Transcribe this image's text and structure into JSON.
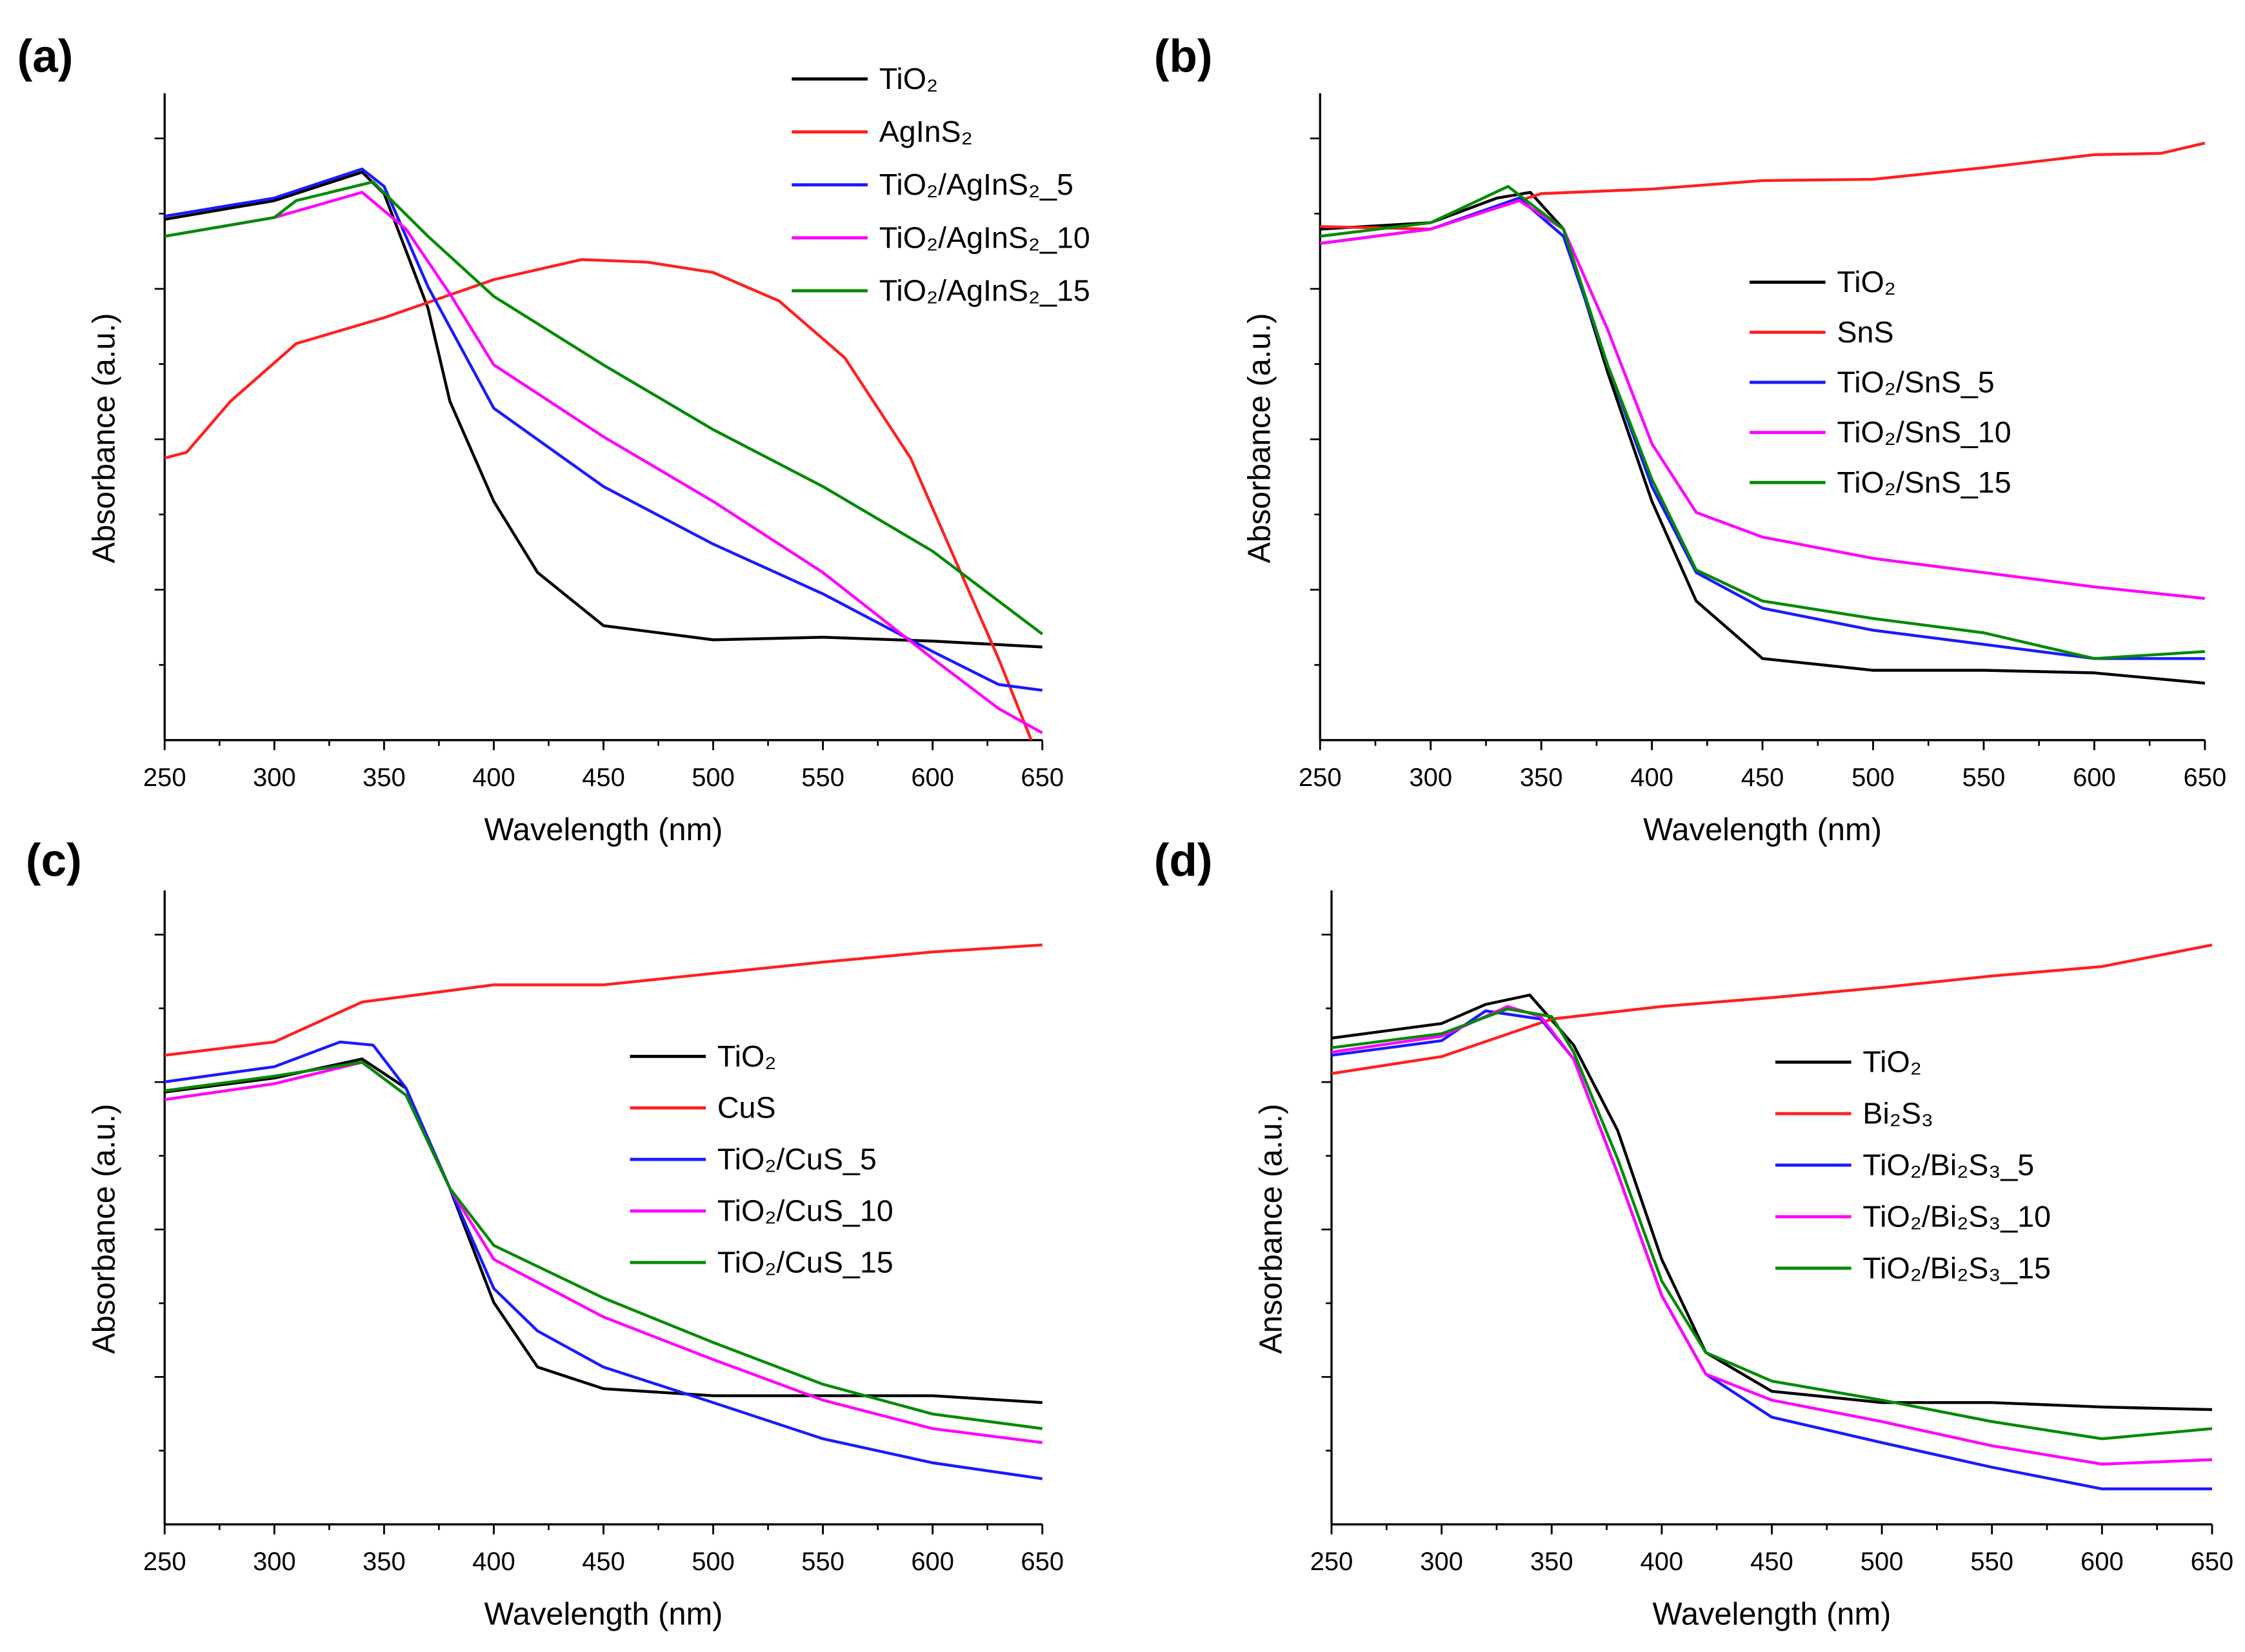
{
  "colors": {
    "TiO2": "#000000",
    "pure": "#ff2020",
    "s5": "#1a1aff",
    "s10": "#ff00ff",
    "s15": "#008a00"
  },
  "chart_data": [
    {
      "panel_label": "(a)",
      "type": "line",
      "xlabel": "Wavelength (nm)",
      "ylabel": "Absorbance (a.u.)",
      "xlim": [
        250,
        650
      ],
      "ylim": [
        0,
        1
      ],
      "xticks": [
        "250",
        "300",
        "350",
        "400",
        "450",
        "500",
        "550",
        "600",
        "650"
      ],
      "legend_position": "top-right",
      "series": [
        {
          "name": "TiO₂",
          "color_key": "TiO2",
          "x": [
            250,
            300,
            340,
            350,
            370,
            380,
            400,
            420,
            450,
            500,
            550,
            600,
            650
          ],
          "y": [
            0.805,
            0.834,
            0.878,
            0.845,
            0.668,
            0.524,
            0.369,
            0.259,
            0.177,
            0.155,
            0.159,
            0.153,
            0.144
          ]
        },
        {
          "name": "AgInS₂",
          "color_key": "pure",
          "x": [
            250,
            260,
            280,
            310,
            350,
            400,
            440,
            470,
            500,
            530,
            560,
            590,
            610,
            630,
            645
          ],
          "y": [
            0.436,
            0.445,
            0.524,
            0.613,
            0.653,
            0.712,
            0.743,
            0.739,
            0.723,
            0.679,
            0.591,
            0.436,
            0.281,
            0.126,
            0.0
          ]
        },
        {
          "name": "TiO₂/AgInS₂_5",
          "color_key": "s5",
          "x": [
            250,
            300,
            340,
            350,
            370,
            400,
            450,
            500,
            550,
            600,
            630,
            650
          ],
          "y": [
            0.81,
            0.838,
            0.883,
            0.856,
            0.701,
            0.513,
            0.392,
            0.303,
            0.226,
            0.137,
            0.086,
            0.077
          ]
        },
        {
          "name": "TiO₂/AgInS₂_10",
          "color_key": "s10",
          "x": [
            250,
            300,
            340,
            360,
            380,
            400,
            450,
            500,
            550,
            600,
            630,
            650
          ],
          "y": [
            0.779,
            0.808,
            0.847,
            0.79,
            0.69,
            0.58,
            0.469,
            0.369,
            0.259,
            0.126,
            0.049,
            0.011
          ]
        },
        {
          "name": "TiO₂/AgInS₂_15",
          "color_key": "s15",
          "x": [
            250,
            300,
            310,
            345,
            370,
            400,
            450,
            500,
            550,
            600,
            650
          ],
          "y": [
            0.779,
            0.808,
            0.834,
            0.863,
            0.779,
            0.686,
            0.58,
            0.48,
            0.392,
            0.292,
            0.164
          ]
        }
      ]
    },
    {
      "panel_label": "(b)",
      "type": "line",
      "xlabel": "Wavelength (nm)",
      "ylabel": "Absorbance (a.u.)",
      "xlim": [
        250,
        650
      ],
      "ylim": [
        0,
        1
      ],
      "xticks": [
        "250",
        "300",
        "350",
        "400",
        "450",
        "500",
        "550",
        "600",
        "650"
      ],
      "legend_position": "center-right",
      "series": [
        {
          "name": "TiO₂",
          "color_key": "TiO2",
          "x": [
            250,
            300,
            330,
            345,
            360,
            380,
            400,
            420,
            450,
            500,
            550,
            600,
            650
          ],
          "y": [
            0.79,
            0.8,
            0.838,
            0.847,
            0.79,
            0.569,
            0.369,
            0.215,
            0.126,
            0.108,
            0.108,
            0.104,
            0.088
          ]
        },
        {
          "name": "SnS",
          "color_key": "pure",
          "x": [
            250,
            300,
            330,
            350,
            400,
            450,
            500,
            550,
            600,
            630,
            650
          ],
          "y": [
            0.794,
            0.79,
            0.823,
            0.845,
            0.852,
            0.865,
            0.867,
            0.885,
            0.905,
            0.907,
            0.923
          ]
        },
        {
          "name": "TiO₂/SnS_5",
          "color_key": "s5",
          "x": [
            250,
            300,
            340,
            360,
            380,
            400,
            420,
            450,
            500,
            550,
            600,
            650
          ],
          "y": [
            0.768,
            0.79,
            0.838,
            0.779,
            0.58,
            0.392,
            0.259,
            0.204,
            0.17,
            0.148,
            0.126,
            0.126
          ]
        },
        {
          "name": "TiO₂/SnS_10",
          "color_key": "s10",
          "x": [
            250,
            300,
            340,
            360,
            380,
            400,
            420,
            450,
            500,
            550,
            600,
            650
          ],
          "y": [
            0.768,
            0.79,
            0.834,
            0.79,
            0.635,
            0.458,
            0.352,
            0.314,
            0.281,
            0.259,
            0.237,
            0.219
          ]
        },
        {
          "name": "TiO₂/SnS_15",
          "color_key": "s15",
          "x": [
            250,
            300,
            335,
            360,
            380,
            400,
            420,
            450,
            500,
            550,
            600,
            650
          ],
          "y": [
            0.779,
            0.8,
            0.856,
            0.79,
            0.58,
            0.403,
            0.263,
            0.215,
            0.188,
            0.166,
            0.126,
            0.137
          ]
        }
      ]
    },
    {
      "panel_label": "(c)",
      "type": "line",
      "xlabel": "Wavelength (nm)",
      "ylabel": "Absorbance (a.u.)",
      "xlim": [
        250,
        650
      ],
      "ylim": [
        0,
        1
      ],
      "xticks": [
        "250",
        "300",
        "350",
        "400",
        "450",
        "500",
        "550",
        "600",
        "650"
      ],
      "legend_position": "center-right",
      "series": [
        {
          "name": "TiO₂",
          "color_key": "TiO2",
          "x": [
            250,
            300,
            340,
            360,
            380,
            400,
            420,
            450,
            500,
            550,
            600,
            650
          ],
          "y": [
            0.682,
            0.704,
            0.734,
            0.688,
            0.53,
            0.35,
            0.248,
            0.214,
            0.203,
            0.203,
            0.203,
            0.192
          ]
        },
        {
          "name": "CuS",
          "color_key": "pure",
          "x": [
            250,
            300,
            340,
            400,
            450,
            500,
            550,
            600,
            650
          ],
          "y": [
            0.74,
            0.761,
            0.824,
            0.851,
            0.851,
            0.869,
            0.887,
            0.903,
            0.914
          ]
        },
        {
          "name": "TiO₂/CuS_5",
          "color_key": "s5",
          "x": [
            250,
            300,
            330,
            345,
            360,
            380,
            400,
            420,
            450,
            500,
            550,
            600,
            650
          ],
          "y": [
            0.698,
            0.722,
            0.761,
            0.756,
            0.688,
            0.53,
            0.372,
            0.305,
            0.248,
            0.192,
            0.135,
            0.097,
            0.072
          ]
        },
        {
          "name": "TiO₂/CuS_10",
          "color_key": "s10",
          "x": [
            250,
            300,
            340,
            360,
            380,
            400,
            450,
            500,
            550,
            600,
            650
          ],
          "y": [
            0.67,
            0.695,
            0.729,
            0.677,
            0.53,
            0.418,
            0.327,
            0.26,
            0.196,
            0.151,
            0.129
          ]
        },
        {
          "name": "TiO₂/CuS_15",
          "color_key": "s15",
          "x": [
            250,
            300,
            340,
            360,
            380,
            400,
            450,
            500,
            550,
            600,
            650
          ],
          "y": [
            0.684,
            0.707,
            0.729,
            0.677,
            0.53,
            0.44,
            0.357,
            0.287,
            0.221,
            0.174,
            0.151
          ]
        }
      ]
    },
    {
      "panel_label": "(d)",
      "type": "line",
      "xlabel": "Wavelength (nm)",
      "ylabel": "Ansorbance (a.u.)",
      "xlim": [
        250,
        650
      ],
      "ylim": [
        0,
        1
      ],
      "xticks": [
        "250",
        "300",
        "350",
        "400",
        "450",
        "500",
        "550",
        "600",
        "650"
      ],
      "legend_position": "center-right",
      "series": [
        {
          "name": "TiO₂",
          "color_key": "TiO2",
          "x": [
            250,
            300,
            320,
            340,
            360,
            380,
            400,
            420,
            450,
            500,
            550,
            600,
            650
          ],
          "y": [
            0.767,
            0.79,
            0.82,
            0.835,
            0.756,
            0.621,
            0.418,
            0.271,
            0.21,
            0.192,
            0.192,
            0.185,
            0.181
          ]
        },
        {
          "name": "Bi₂S₃",
          "color_key": "pure",
          "x": [
            250,
            300,
            350,
            400,
            450,
            500,
            550,
            600,
            650
          ],
          "y": [
            0.711,
            0.738,
            0.797,
            0.817,
            0.831,
            0.847,
            0.865,
            0.88,
            0.914
          ]
        },
        {
          "name": "TiO₂/Bi₂S₃_5",
          "color_key": "s5",
          "x": [
            250,
            300,
            320,
            345,
            360,
            380,
            400,
            420,
            450,
            500,
            550,
            600,
            650
          ],
          "y": [
            0.74,
            0.763,
            0.81,
            0.797,
            0.734,
            0.553,
            0.361,
            0.237,
            0.169,
            0.129,
            0.09,
            0.056,
            0.056
          ]
        },
        {
          "name": "TiO₂/Bi₂S₃_10",
          "color_key": "s10",
          "x": [
            250,
            300,
            330,
            345,
            360,
            380,
            400,
            420,
            450,
            500,
            550,
            600,
            650
          ],
          "y": [
            0.745,
            0.77,
            0.817,
            0.801,
            0.734,
            0.553,
            0.361,
            0.237,
            0.196,
            0.162,
            0.124,
            0.095,
            0.102
          ]
        },
        {
          "name": "TiO₂/Bi₂S₃_15",
          "color_key": "s15",
          "x": [
            250,
            300,
            330,
            350,
            360,
            380,
            400,
            420,
            450,
            500,
            550,
            600,
            650
          ],
          "y": [
            0.752,
            0.774,
            0.813,
            0.801,
            0.745,
            0.576,
            0.384,
            0.271,
            0.226,
            0.196,
            0.162,
            0.135,
            0.151
          ]
        }
      ]
    }
  ]
}
